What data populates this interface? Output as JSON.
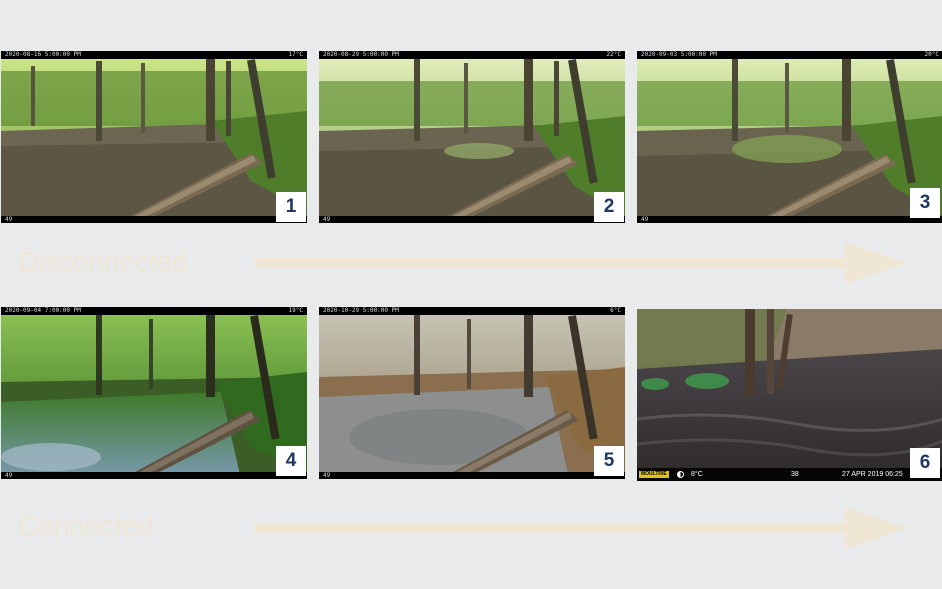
{
  "rows": {
    "top_label": "Disconnected",
    "bottom_label": "Connected"
  },
  "panels": [
    {
      "number": "1",
      "timestamp": "2020-08-16  5:00:00 PM",
      "temp": "17°C",
      "frame": "49"
    },
    {
      "number": "2",
      "timestamp": "2020-08-29  5:00:00 PM",
      "temp": "22°C",
      "frame": "49"
    },
    {
      "number": "3",
      "timestamp": "2020-09-03  5:00:00 PM",
      "temp": "20°C",
      "frame": "49"
    },
    {
      "number": "4",
      "timestamp": "2020-09-04  7:00:00 PM",
      "temp": "19°C",
      "frame": "49"
    },
    {
      "number": "5",
      "timestamp": "2020-10-29  5:00:00 PM",
      "temp": "6°C",
      "frame": "49"
    },
    {
      "number": "6",
      "brand": "MOULTRIE",
      "temp": "8°C",
      "frame": "38",
      "datetime": "27 APR 2019  06:25"
    }
  ],
  "colors": {
    "background": "#e8eaeb",
    "arrow": "#efe7d4",
    "number_text": "#1f3864",
    "number_box": "#ffffff"
  }
}
